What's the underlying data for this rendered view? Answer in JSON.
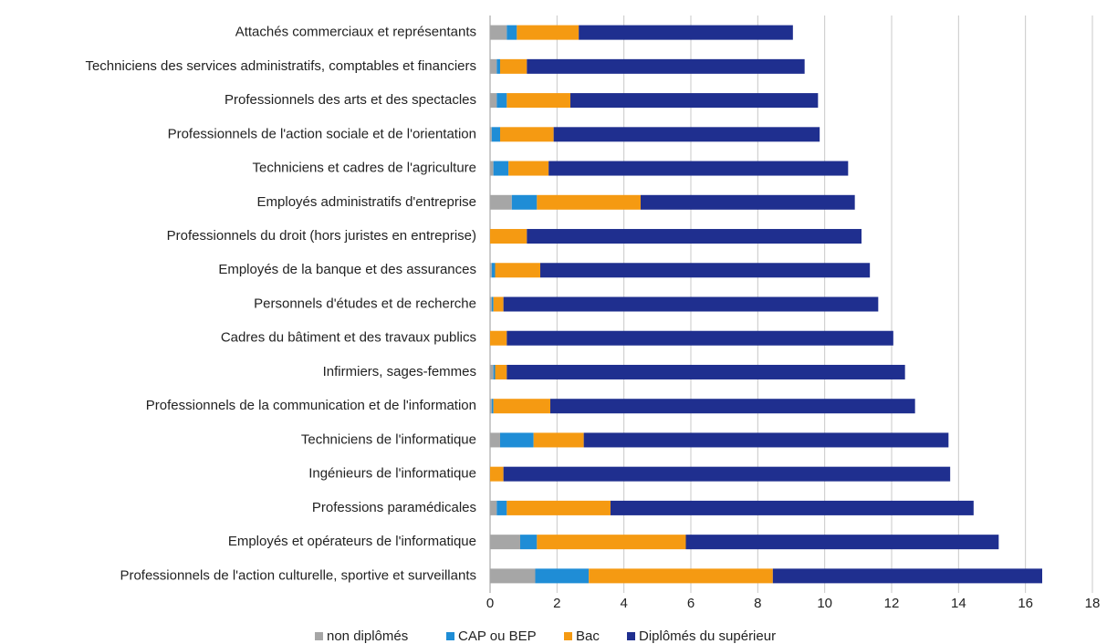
{
  "chart_data": {
    "type": "stacked_bar_horizontal",
    "categories": [
      "Attachés commerciaux et représentants",
      "Techniciens des services administratifs, comptables et financiers",
      "Professionnels des arts et des spectacles",
      "Professionnels de l'action sociale et de l'orientation",
      "Techniciens et cadres de l'agriculture",
      "Employés administratifs d'entreprise",
      "Professionnels du droit (hors juristes en entreprise)",
      "Employés de la banque et des assurances",
      "Personnels d'études et de recherche",
      "Cadres du bâtiment et des travaux publics",
      "Infirmiers, sages-femmes",
      "Professionnels de la communication et de l'information",
      "Techniciens de l'informatique",
      "Ingénieurs de l'informatique",
      "Professions paramédicales",
      "Employés et opérateurs de l'informatique",
      "Professionnels de l'action culturelle, sportive et surveillants"
    ],
    "series": [
      {
        "name": "non diplômés",
        "color": "#a6a6a6",
        "values": [
          0.5,
          0.2,
          0.2,
          0.05,
          0.1,
          0.65,
          0,
          0.05,
          0.05,
          0,
          0.1,
          0.05,
          0.3,
          0,
          0.2,
          0.9,
          1.35
        ]
      },
      {
        "name": "CAP ou BEP",
        "color": "#1f8dd6",
        "values": [
          0.3,
          0.1,
          0.3,
          0.25,
          0.45,
          0.75,
          0,
          0.1,
          0.05,
          0,
          0.05,
          0.05,
          1.0,
          0,
          0.3,
          0.5,
          1.6
        ]
      },
      {
        "name": "Bac",
        "color": "#f59a12",
        "values": [
          1.85,
          0.8,
          1.9,
          1.6,
          1.2,
          3.1,
          1.1,
          1.35,
          0.3,
          0.5,
          0.35,
          1.7,
          1.5,
          0.4,
          3.1,
          4.45,
          5.5
        ]
      },
      {
        "name": "Diplômés du supérieur",
        "color": "#1f2f8f",
        "values": [
          6.4,
          8.3,
          7.4,
          7.95,
          8.95,
          6.4,
          10.0,
          9.85,
          11.2,
          11.55,
          11.9,
          10.9,
          10.9,
          13.35,
          10.85,
          9.35,
          8.05
        ]
      }
    ],
    "xlim": [
      0,
      18
    ],
    "xticks": [
      0,
      2,
      4,
      6,
      8,
      10,
      12,
      14,
      16,
      18
    ],
    "grid": true
  }
}
